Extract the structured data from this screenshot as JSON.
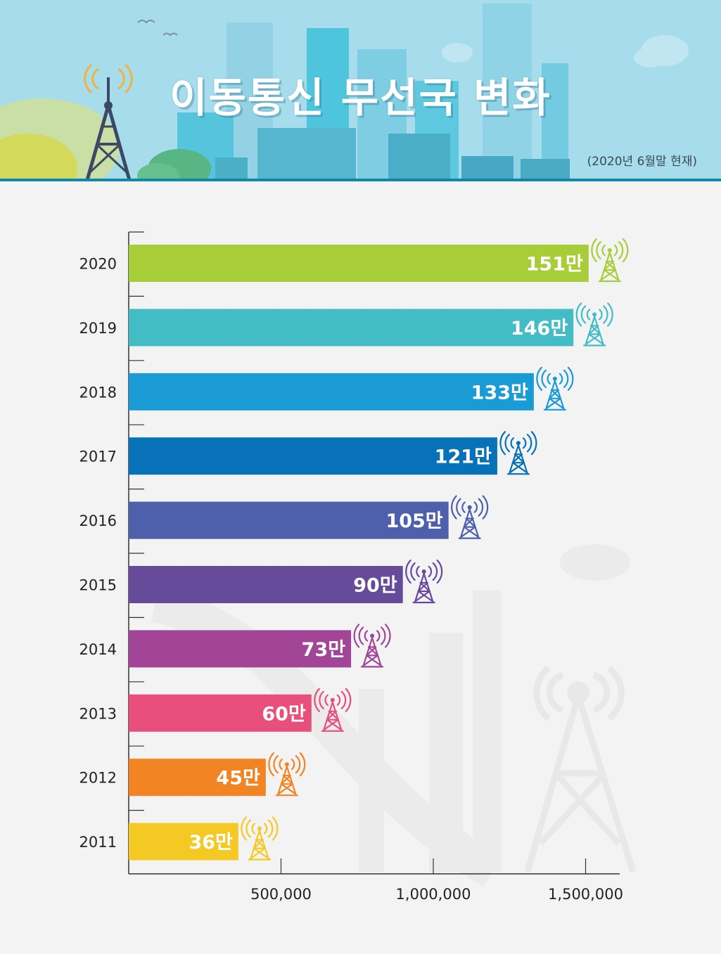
{
  "header": {
    "title": "이동통신 무선국 변화",
    "note": "(2020년 6월말 현재)"
  },
  "chart_data": {
    "type": "bar",
    "orientation": "horizontal",
    "categories": [
      "2020",
      "2019",
      "2018",
      "2017",
      "2016",
      "2015",
      "2014",
      "2013",
      "2012",
      "2011"
    ],
    "values": [
      1510000,
      1460000,
      1330000,
      1210000,
      1050000,
      900000,
      730000,
      600000,
      450000,
      360000
    ],
    "value_labels": [
      "151만",
      "146만",
      "133만",
      "121만",
      "105만",
      "90만",
      "73만",
      "60만",
      "45만",
      "36만"
    ],
    "colors": [
      "#a7ce38",
      "#43bcc6",
      "#1b9bd6",
      "#0872b9",
      "#4e5fac",
      "#664b9b",
      "#a24597",
      "#e94f7c",
      "#f28424",
      "#f5c924"
    ],
    "x_ticks": [
      500000,
      1000000,
      1500000
    ],
    "x_tick_labels": [
      "500,000",
      "1,000,000",
      "1,500,000"
    ],
    "xlim": [
      0,
      1600000
    ],
    "title": "이동통신 무선국 변화",
    "subtitle": "(2020년 6월말 현재)",
    "xlabel": "",
    "ylabel": "",
    "grid": false
  }
}
